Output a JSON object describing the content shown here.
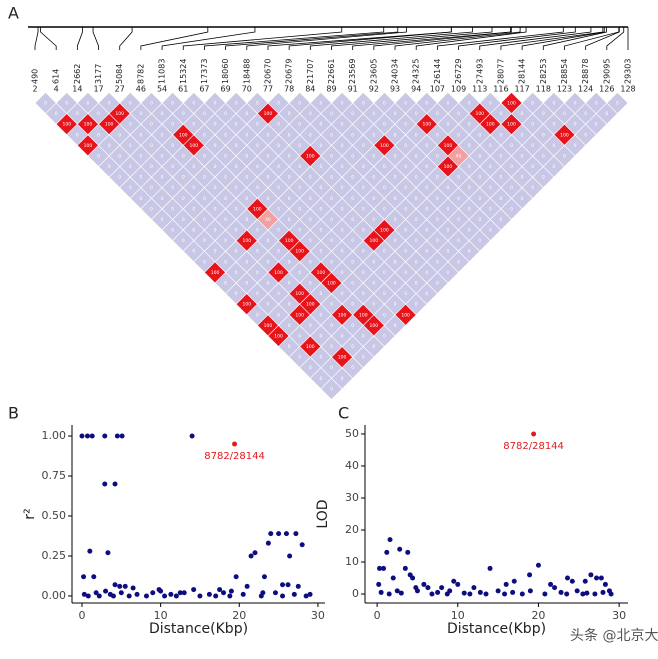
{
  "ld_plot": {
    "panel_label": "A",
    "positions": [
      490,
      614,
      2662,
      3177,
      5084,
      8782,
      11083,
      15324,
      17373,
      18060,
      18488,
      20670,
      20679,
      21707,
      22661,
      23569,
      23605,
      24034,
      24325,
      26144,
      26729,
      27493,
      28077,
      28144,
      28253,
      28854,
      28878,
      29095,
      29303
    ],
    "indices": [
      2,
      4,
      14,
      17,
      27,
      46,
      54,
      61,
      67,
      69,
      70,
      77,
      78,
      84,
      89,
      91,
      92,
      93,
      94,
      107,
      109,
      113,
      116,
      117,
      118,
      123,
      124,
      126,
      128
    ],
    "matrix": [
      [
        0,
        0,
        100,
        0,
        100,
        0,
        0,
        0,
        0,
        0,
        0,
        0,
        0,
        0,
        0,
        0,
        100,
        0,
        0,
        100,
        0,
        100,
        100,
        0,
        0,
        0,
        0,
        0
      ],
      [
        0,
        0,
        100,
        0,
        0,
        0,
        0,
        0,
        0,
        0,
        0,
        0,
        0,
        0,
        0,
        0,
        0,
        0,
        0,
        0,
        0,
        0,
        0,
        100,
        0,
        0,
        0
      ],
      [
        0,
        0,
        100,
        0,
        0,
        0,
        0,
        0,
        0,
        0,
        0,
        0,
        0,
        0,
        0,
        0,
        0,
        0,
        0,
        0,
        100,
        0,
        0,
        0,
        100,
        0
      ],
      [
        0,
        100,
        0,
        0,
        0,
        0,
        0,
        0,
        0,
        0,
        0,
        0,
        0,
        100,
        0,
        0,
        100,
        0,
        100,
        100,
        0,
        0,
        0,
        0,
        0
      ],
      [
        0,
        0,
        0,
        0,
        0,
        0,
        0,
        0,
        0,
        0,
        0,
        0,
        0,
        0,
        0,
        0,
        0,
        0,
        0,
        0,
        100,
        0,
        0,
        0
      ],
      [
        0,
        0,
        0,
        100,
        100,
        0,
        0,
        0,
        0,
        0,
        100,
        40,
        0,
        100,
        100,
        0,
        100,
        100,
        0,
        0,
        100,
        100,
        0
      ],
      [
        0,
        0,
        0,
        0,
        0,
        0,
        0,
        0,
        0,
        0,
        0,
        0,
        0,
        0,
        0,
        0,
        0,
        0,
        0,
        0,
        0,
        0
      ],
      [
        0,
        0,
        0,
        0,
        0,
        0,
        0,
        0,
        0,
        0,
        0,
        0,
        0,
        0,
        0,
        0,
        0,
        0,
        0,
        0,
        100
      ],
      [
        0,
        0,
        0,
        0,
        0,
        0,
        0,
        0,
        0,
        0,
        0,
        0,
        0,
        0,
        0,
        0,
        0,
        0,
        0,
        0
      ],
      [
        0,
        0,
        0,
        0,
        0,
        0,
        0,
        0,
        0,
        0,
        0,
        0,
        0,
        100,
        0,
        0,
        0,
        0,
        0
      ],
      [
        0,
        100,
        0,
        0,
        0,
        100,
        0,
        0,
        0,
        0,
        0,
        0,
        100,
        0,
        0,
        0,
        0,
        0
      ],
      [
        0,
        0,
        0,
        0,
        0,
        0,
        0,
        0,
        0,
        0,
        0,
        0,
        0,
        0,
        0,
        0,
        0
      ],
      [
        0,
        0,
        0,
        0,
        0,
        0,
        0,
        0,
        0,
        0,
        0,
        0,
        0,
        0,
        0,
        0
      ],
      [
        0,
        0,
        0,
        0,
        0,
        0,
        0,
        0,
        0,
        0,
        0,
        0,
        0,
        0,
        0
      ],
      [
        0,
        0,
        0,
        0,
        100,
        0,
        0,
        0,
        0,
        0,
        0,
        0,
        0,
        0
      ],
      [
        0,
        0,
        0,
        0,
        0,
        0,
        0,
        0,
        0,
        0,
        0,
        0,
        0
      ],
      [
        0,
        0,
        0,
        0,
        0,
        0,
        100,
        0,
        0,
        0,
        0,
        0
      ],
      [
        0,
        0,
        100,
        0,
        100,
        40,
        0,
        0,
        0,
        0,
        0
      ],
      [
        0,
        0,
        0,
        0,
        0,
        0,
        0,
        0,
        0,
        0
      ],
      [
        0,
        0,
        0,
        0,
        0,
        0,
        0,
        0,
        0
      ],
      [
        0,
        100,
        100,
        0,
        0,
        0,
        0,
        0
      ],
      [
        0,
        0,
        100,
        0,
        0,
        0,
        0
      ],
      [
        100,
        0,
        0,
        0,
        0,
        0
      ],
      [
        0,
        0,
        0,
        100,
        0
      ],
      [
        0,
        0,
        0,
        0
      ],
      [
        0,
        0,
        0
      ],
      [
        0,
        0
      ],
      [
        0
      ]
    ]
  },
  "chart_data": [
    {
      "type": "scatter",
      "panel_label": "B",
      "xlabel": "Distance(Kbp)",
      "ylabel": "r²",
      "color": "#0d0d80",
      "x": [
        0,
        0.7,
        1.3,
        2.9,
        4.5,
        5.1,
        14,
        2.9,
        4.2,
        1,
        3.3,
        0.2,
        1.5,
        24,
        25,
        26,
        27.2,
        23.7,
        28,
        21.5,
        26.4,
        22,
        19.6,
        23.2,
        4.2,
        4.8,
        5.5,
        6.5,
        25.5,
        26.2,
        27.5,
        21,
        17.5,
        14.2,
        9.8,
        0.3,
        0.8,
        1.8,
        2.2,
        3.6,
        4,
        5,
        6,
        7,
        8.2,
        9,
        10.5,
        11.3,
        12,
        13,
        15,
        16.2,
        17,
        18,
        18.8,
        20.5,
        22.8,
        24.6,
        25.5,
        27,
        28.5,
        29,
        10,
        12.5,
        3,
        19,
        23
      ],
      "y": [
        1,
        1,
        1,
        1,
        1,
        1,
        1,
        0.7,
        0.7,
        0.28,
        0.27,
        0.12,
        0.12,
        0.39,
        0.39,
        0.39,
        0.39,
        0.33,
        0.32,
        0.25,
        0.25,
        0.27,
        0.12,
        0.12,
        0.07,
        0.06,
        0.06,
        0.05,
        0.07,
        0.07,
        0.06,
        0.06,
        0.04,
        0.04,
        0.04,
        0.01,
        0,
        0.02,
        0,
        0.01,
        0,
        0.02,
        0,
        0.01,
        0,
        0.02,
        0,
        0.01,
        0,
        0.02,
        0,
        0.01,
        0,
        0.02,
        0,
        0.01,
        0,
        0.02,
        0,
        0.01,
        0,
        0.01,
        0.03,
        0.02,
        0.03,
        0.03,
        0.02
      ],
      "xlim": [
        -1.27,
        30.9
      ],
      "ylim": [
        -0.044,
        1.069
      ],
      "xticks": [
        0,
        10,
        20,
        30
      ],
      "yticks": [
        {
          "value": 0,
          "label": "0.00"
        },
        {
          "value": 0.25,
          "label": "0.25"
        },
        {
          "value": 0.5,
          "label": "0.50"
        },
        {
          "value": 0.75,
          "label": "0.75"
        },
        {
          "value": 1,
          "label": "1.00"
        }
      ],
      "annotation": {
        "x": 19.4,
        "y": 0.95,
        "text": "8782/28144",
        "color": "#e41a1c"
      }
    },
    {
      "type": "scatter",
      "panel_label": "C",
      "xlabel": "Distance(Kbp)",
      "ylabel": "LOD",
      "color": "#0d0d80",
      "x": [
        0.3,
        1.2,
        1.6,
        0.8,
        2.8,
        3.5,
        3.8,
        4.1,
        4.4,
        0.2,
        2,
        4.8,
        5.8,
        6.3,
        9.5,
        10,
        14,
        16,
        18.9,
        20,
        21.5,
        23.6,
        24.2,
        25.8,
        26.5,
        27.2,
        27.8,
        28.3,
        22,
        17,
        12,
        8,
        0.5,
        1.5,
        2.5,
        3,
        5,
        6.8,
        7.5,
        8.7,
        9,
        10.8,
        11.5,
        12.8,
        13.5,
        15,
        15.8,
        16.8,
        18,
        19,
        20.8,
        22.8,
        23.5,
        24.8,
        25.5,
        26,
        27,
        28,
        29,
        28.8
      ],
      "y": [
        8,
        13,
        17,
        8,
        14,
        8,
        13,
        6,
        5,
        3,
        5,
        2,
        3,
        2,
        4,
        3,
        8,
        3,
        6,
        9,
        3,
        5,
        4,
        4,
        6,
        5,
        5,
        3,
        2,
        4,
        2,
        2,
        0.5,
        0,
        1,
        0.3,
        1,
        0,
        0.5,
        0,
        1,
        0.3,
        0,
        0.5,
        0,
        1,
        0,
        0.5,
        0,
        1,
        0,
        0.5,
        0,
        1,
        0,
        0.3,
        0,
        0.5,
        0,
        1
      ],
      "xlim": [
        -1.5,
        31.1
      ],
      "ylim": [
        -2.8,
        52.8
      ],
      "xticks": [
        0,
        10,
        20,
        30
      ],
      "yticks": [
        0,
        10,
        20,
        30,
        40,
        50
      ],
      "annotation": {
        "x": 19.4,
        "y": 50,
        "text": "8782/28144",
        "color": "#e41a1c"
      }
    }
  ],
  "watermark": "头条 @北京大学"
}
